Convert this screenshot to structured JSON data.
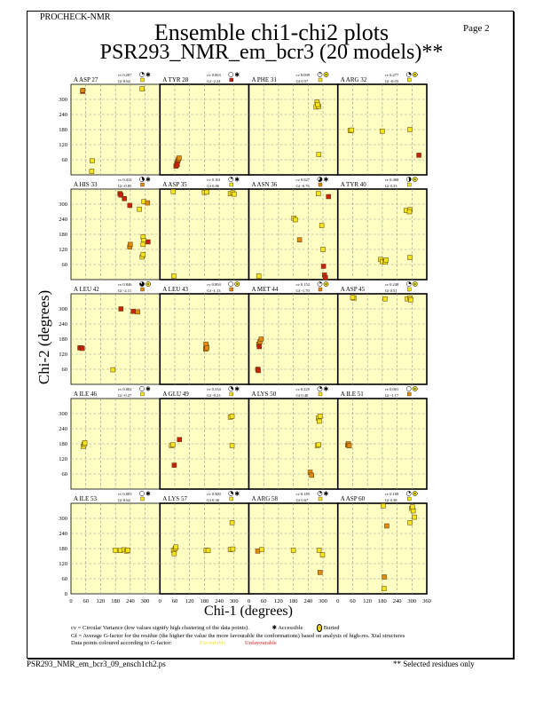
{
  "header": {
    "program": "PROCHECK-NMR",
    "page": "Page  2",
    "title": "Ensemble chi1-chi2 plots",
    "subtitle": "PSR293_NMR_em_bcr3 (20 models)**"
  },
  "footer": {
    "filename": "PSR293_NMR_em_bcr3_09_ensch1ch2.ps",
    "note": "** Selected residues only"
  },
  "legend": {
    "cv": "cv = Circular Variance (low values signify high clustering of the data points).",
    "accessible": "Accessible",
    "buried": "Buried",
    "gf": "Gf = Average G-factor for the residue (the higher the value the more favourable the conformations) based on analysis of high-res. Xtal structures",
    "colour": "Data points coloured according to G-factor:",
    "favourable": "Favourable",
    "unfavourable": "Unfavourable"
  },
  "colors": {
    "panel_bg": "#ffffc4",
    "yellow": "#f2e41e",
    "orange": "#e08a12",
    "red": "#c8220e",
    "fav": "#f0e040",
    "unfav": "#d02020"
  },
  "chart_data": {
    "type": "scatter",
    "title": "Ensemble chi1-chi2 plots",
    "xlabel": "Chi-1 (degrees)",
    "ylabel": "Chi-2 (degrees)",
    "xlim": [
      0,
      360
    ],
    "ylim": [
      0,
      360
    ],
    "xticks": [
      0,
      60,
      120,
      180,
      240,
      300
    ],
    "xticks_last": [
      0,
      60,
      120,
      180,
      240,
      300,
      360
    ],
    "yticks": [
      60,
      120,
      180,
      240,
      300
    ],
    "yticks_last": [
      0,
      60,
      120,
      180,
      240,
      300
    ],
    "grid": true,
    "panels": [
      {
        "label": "A ASP 27",
        "cv": "cv 0.207",
        "gf": "Gf 0.64",
        "gfc": "yellow",
        "access": "accessible",
        "pts": [
          [
            47,
            332,
            "red"
          ],
          [
            48,
            336,
            "orange"
          ],
          [
            288,
            342,
            "yellow"
          ],
          [
            86,
            56,
            "yellow"
          ],
          [
            84,
            14,
            "yellow"
          ]
        ]
      },
      {
        "label": "A TYR 28",
        "cv": "cv 0.003",
        "gf": "Gf -2.24",
        "gfc": "red",
        "access": "accessible",
        "pts": [
          [
            65,
            35,
            "red"
          ],
          [
            68,
            45,
            "red"
          ],
          [
            72,
            55,
            "red"
          ],
          [
            75,
            62,
            "orange"
          ],
          [
            78,
            67,
            "orange"
          ],
          [
            70,
            40,
            "red"
          ]
        ]
      },
      {
        "label": "A PHE 31",
        "cv": "cv 0.099",
        "gf": "Gf 0.57",
        "gfc": "yellow",
        "access": "buried",
        "pts": [
          [
            272,
            270,
            "yellow"
          ],
          [
            276,
            290,
            "yellow"
          ],
          [
            282,
            272,
            "yellow"
          ],
          [
            278,
            280,
            "yellow"
          ],
          [
            283,
            81,
            "yellow"
          ]
        ]
      },
      {
        "label": "A ARG 32",
        "cv": "cv 0.277",
        "gf": "Gf -0.03",
        "gfc": "yellow",
        "access": "buried",
        "pts": [
          [
            50,
            176,
            "yellow"
          ],
          [
            56,
            178,
            "yellow"
          ],
          [
            180,
            174,
            "yellow"
          ],
          [
            292,
            180,
            "yellow"
          ],
          [
            328,
            78,
            "red"
          ]
        ]
      },
      {
        "label": "A HIS 33",
        "cv": "cv 0.414",
        "gf": "Gf -0.85",
        "gfc": "orange",
        "access": "accessible",
        "pts": [
          [
            198,
            342,
            "red"
          ],
          [
            202,
            336,
            "red"
          ],
          [
            216,
            322,
            "red"
          ],
          [
            238,
            295,
            "red"
          ],
          [
            277,
            280,
            "yellow"
          ],
          [
            295,
            310,
            "yellow"
          ],
          [
            310,
            305,
            "orange"
          ],
          [
            292,
            170,
            "yellow"
          ],
          [
            295,
            155,
            "yellow"
          ],
          [
            292,
            140,
            "yellow"
          ],
          [
            288,
            90,
            "yellow"
          ],
          [
            292,
            100,
            "yellow"
          ],
          [
            312,
            150,
            "red"
          ],
          [
            238,
            130,
            "orange"
          ],
          [
            240,
            140,
            "orange"
          ]
        ]
      },
      {
        "label": "A ASP 35",
        "cv": "cv 0.161",
        "gf": "Gf 0.86",
        "gfc": "yellow",
        "access": "accessible",
        "pts": [
          [
            54,
            350,
            "yellow"
          ],
          [
            180,
            347,
            "yellow"
          ],
          [
            190,
            348,
            "yellow"
          ],
          [
            285,
            342,
            "yellow"
          ],
          [
            295,
            345,
            "yellow"
          ],
          [
            300,
            340,
            "yellow"
          ],
          [
            56,
            14,
            "yellow"
          ]
        ]
      },
      {
        "label": "A ASN 36",
        "cv": "cv 0.627",
        "gf": "Gf -0.76",
        "gfc": "orange",
        "access": "accessible",
        "pts": [
          [
            40,
            14,
            "yellow"
          ],
          [
            182,
            244,
            "yellow"
          ],
          [
            188,
            238,
            "yellow"
          ],
          [
            205,
            158,
            "orange"
          ],
          [
            281,
            342,
            "yellow"
          ],
          [
            295,
            215,
            "yellow"
          ],
          [
            300,
            120,
            "yellow"
          ],
          [
            302,
            53,
            "red"
          ],
          [
            306,
            18,
            "red"
          ],
          [
            310,
            8,
            "red"
          ],
          [
            322,
            330,
            "red"
          ]
        ]
      },
      {
        "label": "A TYR 40",
        "cv": "cv 0.468",
        "gf": "Gf 0.33",
        "gfc": "yellow",
        "access": "buried",
        "pts": [
          [
            277,
            275,
            "yellow"
          ],
          [
            292,
            278,
            "yellow"
          ],
          [
            290,
            270,
            "yellow"
          ],
          [
            173,
            80,
            "yellow"
          ],
          [
            180,
            72,
            "yellow"
          ],
          [
            191,
            70,
            "yellow"
          ],
          [
            195,
            78,
            "yellow"
          ],
          [
            292,
            88,
            "yellow"
          ]
        ]
      },
      {
        "label": "A LEU 42",
        "cv": "cv 0.846",
        "gf": "Gf -2.11",
        "gfc": "orange",
        "access": "buried",
        "pts": [
          [
            36,
            145,
            "red"
          ],
          [
            42,
            145,
            "red"
          ],
          [
            46,
            143,
            "red"
          ],
          [
            170,
            58,
            "yellow"
          ],
          [
            202,
            300,
            "red"
          ],
          [
            252,
            290,
            "red"
          ],
          [
            270,
            288,
            "orange"
          ]
        ]
      },
      {
        "label": "A LEU 43",
        "cv": "cv 0.004",
        "gf": "Gf -1.13",
        "gfc": "orange",
        "access": "buried",
        "pts": [
          [
            185,
            140,
            "orange"
          ],
          [
            188,
            150,
            "orange"
          ],
          [
            186,
            160,
            "orange"
          ],
          [
            190,
            145,
            "orange"
          ]
        ]
      },
      {
        "label": "A MET 44",
        "cv": "cv 0.152",
        "gf": "Gf -1.70",
        "gfc": "orange",
        "access": "buried",
        "pts": [
          [
            40,
            160,
            "orange"
          ],
          [
            45,
            170,
            "orange"
          ],
          [
            50,
            180,
            "orange"
          ],
          [
            42,
            150,
            "red"
          ],
          [
            36,
            60,
            "red"
          ],
          [
            38,
            55,
            "red"
          ]
        ]
      },
      {
        "label": "A ASP 45",
        "cv": "cv 0.248",
        "gf": "Gf 0.51",
        "gfc": "yellow",
        "access": "buried",
        "pts": [
          [
            65,
            343,
            "yellow"
          ],
          [
            60,
            345,
            "yellow"
          ],
          [
            191,
            340,
            "yellow"
          ],
          [
            281,
            340,
            "yellow"
          ],
          [
            292,
            343,
            "yellow"
          ],
          [
            295,
            336,
            "yellow"
          ]
        ]
      },
      {
        "label": "A ILE 46",
        "cv": "cv 0.002",
        "gf": "Gf -0.27",
        "gfc": "yellow",
        "access": "accessible",
        "pts": [
          [
            50,
            170,
            "yellow"
          ],
          [
            53,
            178,
            "yellow"
          ],
          [
            56,
            184,
            "yellow"
          ]
        ]
      },
      {
        "label": "A GLU 49",
        "cv": "cv 0.334",
        "gf": "Gf -0.23",
        "gfc": "yellow",
        "access": "accessible",
        "pts": [
          [
            47,
            173,
            "yellow"
          ],
          [
            52,
            176,
            "yellow"
          ],
          [
            79,
            197,
            "red"
          ],
          [
            58,
            95,
            "red"
          ],
          [
            285,
            286,
            "yellow"
          ],
          [
            292,
            290,
            "yellow"
          ],
          [
            292,
            173,
            "yellow"
          ]
        ]
      },
      {
        "label": "A LYS 50",
        "cv": "cv 0.225",
        "gf": "Gf 0.40",
        "gfc": "yellow",
        "access": "accessible",
        "pts": [
          [
            281,
            282,
            "yellow"
          ],
          [
            285,
            270,
            "yellow"
          ],
          [
            288,
            290,
            "yellow"
          ],
          [
            277,
            173,
            "yellow"
          ],
          [
            282,
            176,
            "yellow"
          ],
          [
            248,
            67,
            "orange"
          ],
          [
            254,
            55,
            "orange"
          ]
        ]
      },
      {
        "label": "A ILE 51",
        "cv": "cv 0.001",
        "gf": "Gf -1.17",
        "gfc": "orange",
        "access": "buried",
        "pts": [
          [
            40,
            175,
            "orange"
          ],
          [
            43,
            180,
            "orange"
          ],
          [
            46,
            172,
            "orange"
          ]
        ]
      },
      {
        "label": "A ILE 53",
        "cv": "cv 0.003",
        "gf": "Gf 0.64",
        "gfc": "yellow",
        "access": "accessible",
        "pts": [
          [
            180,
            173,
            "yellow"
          ],
          [
            200,
            172,
            "yellow"
          ],
          [
            215,
            175,
            "yellow"
          ],
          [
            225,
            170,
            "yellow"
          ],
          [
            230,
            174,
            "yellow"
          ]
        ]
      },
      {
        "label": "A LYS 57",
        "cv": "cv 0.300",
        "gf": "Gf 0.36",
        "gfc": "yellow",
        "access": "accessible",
        "pts": [
          [
            55,
            173,
            "yellow"
          ],
          [
            62,
            180,
            "yellow"
          ],
          [
            65,
            186,
            "yellow"
          ],
          [
            58,
            160,
            "yellow"
          ],
          [
            187,
            173,
            "yellow"
          ],
          [
            195,
            172,
            "yellow"
          ],
          [
            285,
            176,
            "yellow"
          ],
          [
            295,
            178,
            "yellow"
          ],
          [
            292,
            283,
            "yellow"
          ]
        ]
      },
      {
        "label": "A ARG 58",
        "cv": "cv 0.185",
        "gf": "Gf 0.67",
        "gfc": "yellow",
        "access": "accessible",
        "pts": [
          [
            36,
            170,
            "orange"
          ],
          [
            52,
            176,
            "yellow"
          ],
          [
            180,
            173,
            "yellow"
          ],
          [
            284,
            173,
            "yellow"
          ],
          [
            298,
            155,
            "yellow"
          ],
          [
            288,
            85,
            "orange"
          ]
        ]
      },
      {
        "label": "A ASP 60",
        "cv": "cv 0.169",
        "gf": "Gf 0.38",
        "gfc": "yellow",
        "access": "buried",
        "pts": [
          [
            299,
            340,
            "yellow"
          ],
          [
            305,
            330,
            "yellow"
          ],
          [
            302,
            345,
            "yellow"
          ],
          [
            310,
            305,
            "yellow"
          ],
          [
            184,
            350,
            "yellow"
          ],
          [
            198,
            270,
            "orange"
          ],
          [
            292,
            283,
            "yellow"
          ],
          [
            188,
            67,
            "orange"
          ],
          [
            187,
            21,
            "yellow"
          ]
        ]
      }
    ]
  }
}
